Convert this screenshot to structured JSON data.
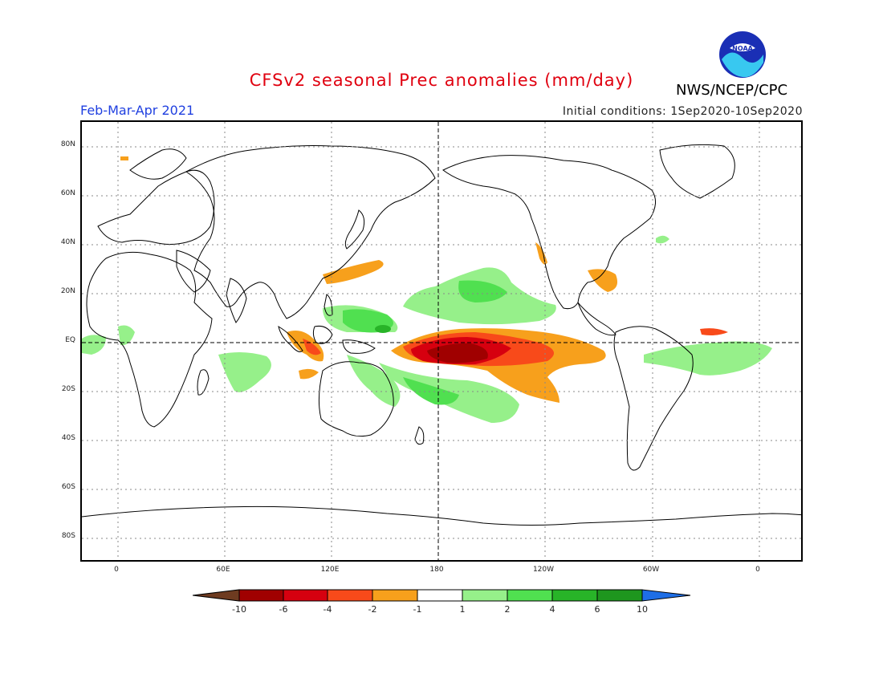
{
  "header": {
    "title": "CFSv2 seasonal Prec anomalies (mm/day)",
    "period": "Feb-Mar-Apr 2021",
    "init_conditions": "Initial conditions: 1Sep2020-10Sep2020",
    "agency": "NWS/NCEP/CPC",
    "logo_text": "NOAA"
  },
  "map": {
    "lat_labels": [
      "80N",
      "60N",
      "40N",
      "20N",
      "EQ",
      "20S",
      "40S",
      "60S",
      "80S"
    ],
    "lon_labels": [
      "0",
      "60E",
      "120E",
      "180",
      "120W",
      "60W",
      "0"
    ],
    "grid": true
  },
  "legend": {
    "ticks": [
      "-10",
      "-6",
      "-4",
      "-2",
      "-1",
      "1",
      "2",
      "4",
      "6",
      "10"
    ],
    "colors": {
      "lt_-10": "#6e3b20",
      "-10_-6": "#a00000",
      "-6_-4": "#d6000f",
      "-4_-2": "#f84a1a",
      "-2_-1": "#f7a01c",
      "-1_1": "#ffffff",
      "1_2": "#96f08a",
      "2_4": "#50e050",
      "4_6": "#28b428",
      "6_10": "#1e961e",
      "gt_10": "#1e6ee6"
    }
  }
}
